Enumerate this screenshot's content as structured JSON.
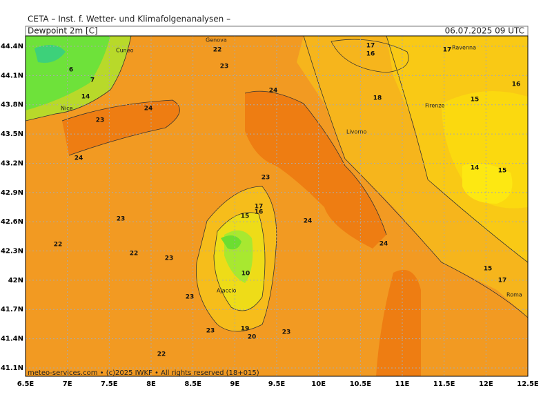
{
  "header": {
    "source": "CETA – Inst. f. Wetter- und Klimafolgenanalysen –",
    "title": "Dewpoint 2m [C]",
    "timestamp": "06.07.2025 09 UTC"
  },
  "footer": "meteo-services.com • (c)2025 IWKF • All rights reserved (18+015)",
  "lon_labels": [
    "6.5E",
    "7E",
    "7.5E",
    "8E",
    "8.5E",
    "9E",
    "9.5E",
    "10E",
    "10.5E",
    "11E",
    "11.5E",
    "12E",
    "12.5E"
  ],
  "lat_labels": [
    "44.4N",
    "44.1N",
    "43.8N",
    "43.5N",
    "43.2N",
    "42.9N",
    "42.6N",
    "42.3N",
    "42N",
    "41.7N",
    "41.4N",
    "41.1N"
  ],
  "places": [
    "Genova",
    "Cuneo",
    "Ravenna",
    "Nice",
    "Firenze",
    "Livorno",
    "Ajaccio",
    "Roma"
  ],
  "contour_labels": [
    "17",
    "16",
    "17",
    "22",
    "6",
    "7",
    "23",
    "24",
    "18",
    "16",
    "15",
    "24",
    "23",
    "24",
    "14",
    "15",
    "23",
    "24",
    "23",
    "22",
    "22",
    "23",
    "24",
    "15",
    "10",
    "15",
    "17",
    "23",
    "23",
    "19",
    "20",
    "23",
    "22",
    "17",
    "16",
    "14"
  ]
}
